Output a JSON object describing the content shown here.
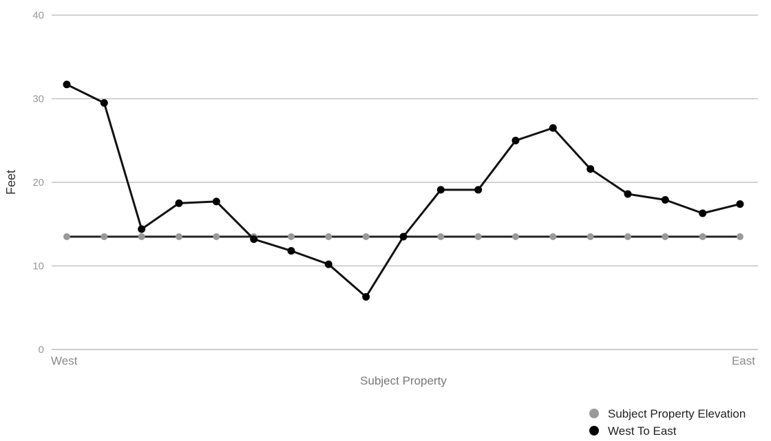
{
  "chart_data": {
    "type": "line",
    "title": "",
    "xlabel": "Subject Property",
    "ylabel": "Feet",
    "ylim": [
      0,
      40
    ],
    "yticks": [
      "0",
      "10",
      "20",
      "30",
      "40"
    ],
    "x_edge_labels": {
      "left": "West",
      "right": "East"
    },
    "point_count": 19,
    "grid": true,
    "legend_position": "bottom-right",
    "series": [
      {
        "name": "Subject Property Elevation",
        "color": "#999999",
        "marker": "circle",
        "values": [
          13.5,
          13.5,
          13.5,
          13.5,
          13.5,
          13.5,
          13.5,
          13.5,
          13.5,
          13.5,
          13.5,
          13.5,
          13.5,
          13.5,
          13.5,
          13.5,
          13.5,
          13.5,
          13.5
        ]
      },
      {
        "name": "West To East",
        "color": "#000000",
        "marker": "circle",
        "values": [
          31.7,
          29.5,
          14.4,
          17.5,
          17.7,
          13.2,
          11.8,
          10.2,
          6.3,
          13.5,
          19.1,
          19.1,
          25.0,
          26.5,
          21.6,
          18.6,
          17.9,
          16.3,
          17.4
        ]
      }
    ],
    "legend": [
      "Subject Property Elevation",
      "West To East"
    ]
  }
}
